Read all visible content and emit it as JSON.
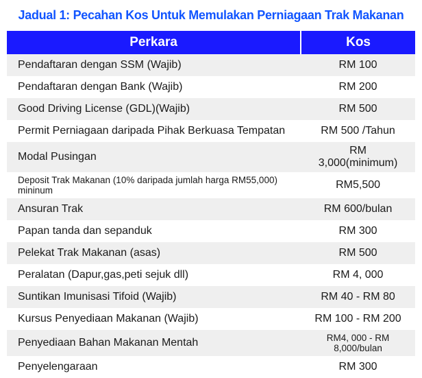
{
  "title": "Jadual 1: Pecahan Kos Untuk Memulakan Perniagaan Trak Makanan",
  "title_color": "#1155ff",
  "header_bg": "#1a1aff",
  "columns": [
    "Perkara",
    "Kos"
  ],
  "row_colors": {
    "even": "#efefef",
    "odd": "#ffffff"
  },
  "rows": [
    {
      "perkara": "Pendaftaran dengan SSM (Wajib)",
      "kos": "RM 100"
    },
    {
      "perkara": "Pendaftaran dengan Bank (Wajib)",
      "kos": "RM 200"
    },
    {
      "perkara": "Good Driving License (GDL)(Wajib)",
      "kos": "RM 500"
    },
    {
      "perkara": "Permit Perniagaan daripada Pihak Berkuasa Tempatan",
      "kos": "RM 500 /Tahun"
    },
    {
      "perkara": "Modal Pusingan",
      "kos": "RM 3,000(minimum)"
    },
    {
      "perkara": "Deposit Trak Makanan (10% daripada jumlah harga RM55,000) mininum",
      "kos": "RM5,500",
      "perkara_fs": "fs-small"
    },
    {
      "perkara": "Ansuran Trak",
      "kos": "RM 600/bulan"
    },
    {
      "perkara": "Papan tanda dan sepanduk",
      "kos": "RM 300"
    },
    {
      "perkara": "Pelekat Trak Makanan (asas)",
      "kos": "RM 500"
    },
    {
      "perkara": "Peralatan (Dapur,gas,peti sejuk dll)",
      "kos": "RM 4, 000"
    },
    {
      "perkara": "Suntikan Imunisasi Tifoid (Wajib)",
      "kos": "RM 40 - RM 80"
    },
    {
      "perkara": "Kursus Penyediaan Makanan (Wajib)",
      "kos": "RM 100 - RM 200"
    },
    {
      "perkara": "Penyediaan Bahan Makanan Mentah",
      "kos": "RM4, 000 - RM 8,000/bulan",
      "kos_fs": "fs-small"
    },
    {
      "perkara": "Penyelengaraan",
      "kos": "RM 300"
    }
  ]
}
